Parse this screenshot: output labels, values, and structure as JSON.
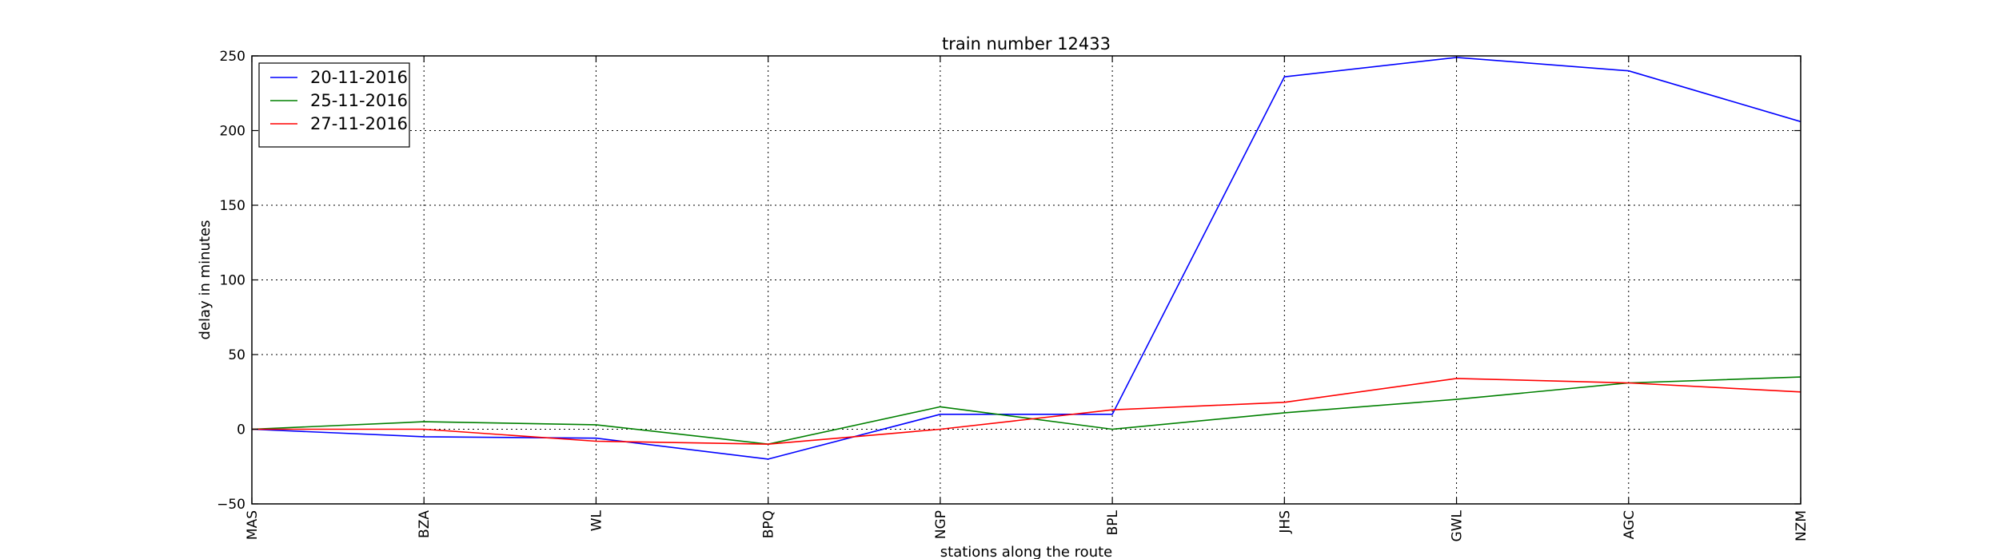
{
  "chart_data": {
    "type": "line",
    "title": "train number 12433",
    "xlabel": "stations along the route",
    "ylabel": "delay in minutes",
    "categories": [
      "MAS",
      "BZA",
      "WL",
      "BPQ",
      "NGP",
      "BPL",
      "JHS",
      "GWL",
      "AGC",
      "NZM"
    ],
    "ylim": [
      -50,
      250
    ],
    "yticks": [
      -50,
      0,
      50,
      100,
      150,
      200,
      250
    ],
    "grid": true,
    "legend_position": "top-left",
    "series": [
      {
        "name": "20-11-2016",
        "color": "#0000ff",
        "values": [
          0,
          -5,
          -6,
          -20,
          10,
          10,
          236,
          249,
          240,
          206
        ]
      },
      {
        "name": "25-11-2016",
        "color": "#008000",
        "values": [
          0,
          5,
          3,
          -10,
          15,
          0,
          11,
          20,
          31,
          35
        ]
      },
      {
        "name": "27-11-2016",
        "color": "#ff0000",
        "values": [
          0,
          0,
          -8,
          -10,
          0,
          13,
          18,
          34,
          31,
          25
        ]
      }
    ]
  }
}
